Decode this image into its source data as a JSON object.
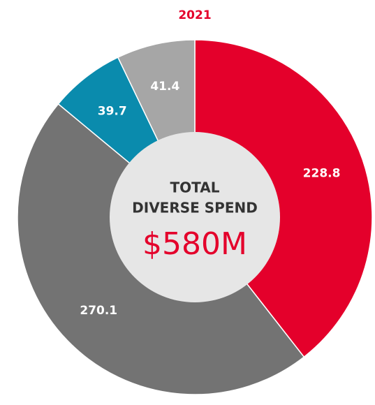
{
  "chart_data": {
    "type": "donut",
    "title": "2021",
    "categories": [
      null,
      null,
      null,
      null
    ],
    "values": [
      228.8,
      270.1,
      39.7,
      41.4
    ],
    "colors": [
      "#e4002b",
      "#737373",
      "#0a8bad",
      "#a6a6a6"
    ],
    "center_text": [
      "TOTAL",
      "DIVERSE SPEND"
    ],
    "center_value": "$580M"
  }
}
